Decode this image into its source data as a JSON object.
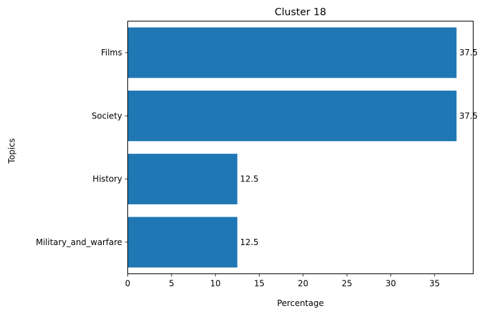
{
  "chart_data": {
    "type": "bar",
    "orientation": "horizontal",
    "title": "Cluster 18",
    "xlabel": "Percentage",
    "ylabel": "Topics",
    "categories": [
      "Films",
      "Society",
      "History",
      "Military_and_warfare"
    ],
    "values": [
      37.5,
      37.5,
      12.5,
      12.5
    ],
    "data_labels": [
      "37.5",
      "37.5",
      "12.5",
      "12.5"
    ],
    "xticks": [
      0,
      5,
      10,
      15,
      20,
      25,
      30,
      35
    ],
    "xlim": [
      0,
      39.4
    ],
    "bar_color": "#1f77b4",
    "grid": false,
    "legend": "none"
  }
}
